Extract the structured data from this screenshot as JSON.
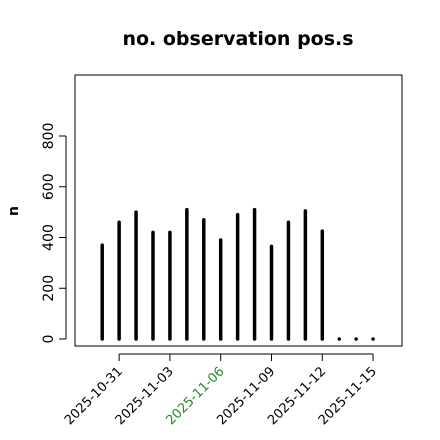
{
  "chart_data": {
    "type": "bar",
    "title": "no. observation pos.s",
    "xlabel": "",
    "ylabel": "n",
    "ylim": [
      0,
      1000
    ],
    "yticks": [
      0,
      200,
      400,
      600,
      800
    ],
    "x": [
      "2025-10-30",
      "2025-10-31",
      "2025-11-01",
      "2025-11-02",
      "2025-11-03",
      "2025-11-04",
      "2025-11-05",
      "2025-11-06",
      "2025-11-07",
      "2025-11-08",
      "2025-11-09",
      "2025-11-10",
      "2025-11-11",
      "2025-11-12",
      "2025-11-13",
      "2025-11-14",
      "2025-11-15"
    ],
    "values": [
      370,
      460,
      500,
      420,
      420,
      510,
      470,
      390,
      490,
      510,
      365,
      460,
      505,
      425,
      0,
      0,
      0
    ],
    "xticks": [
      {
        "label": "2025-10-31",
        "color": "#000000",
        "index": 1
      },
      {
        "label": "2025-11-03",
        "color": "#000000",
        "index": 4
      },
      {
        "label": "2025-11-06",
        "color": "#228b22",
        "index": 7
      },
      {
        "label": "2025-11-09",
        "color": "#000000",
        "index": 10
      },
      {
        "label": "2025-11-12",
        "color": "#000000",
        "index": 13
      },
      {
        "label": "2025-11-15",
        "color": "#000000",
        "index": 16
      }
    ],
    "grid": false,
    "bar_color": "#000000"
  }
}
